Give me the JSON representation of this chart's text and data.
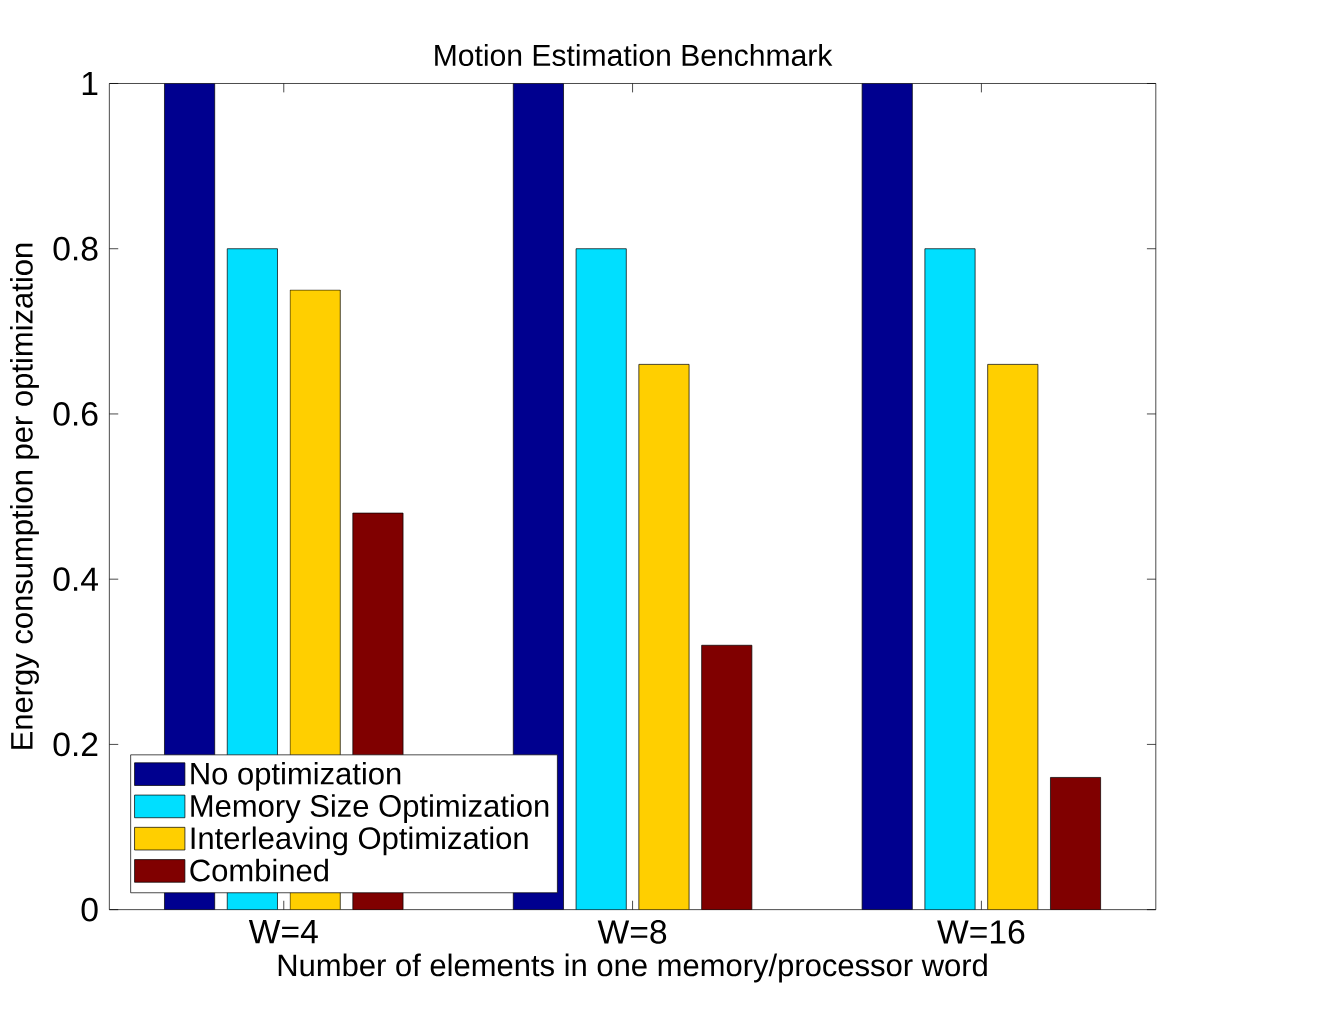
{
  "chart_data": {
    "type": "bar",
    "title": "Motion Estimation Benchmark",
    "xlabel": "Number of elements in one memory/processor word",
    "ylabel": "Energy consumption per optimization",
    "categories": [
      "W=4",
      "W=8",
      "W=16"
    ],
    "series": [
      {
        "name": "No optimization",
        "color": "#00008f",
        "values": [
          1,
          1,
          1
        ]
      },
      {
        "name": "Memory Size Optimization",
        "color": "#00dfff",
        "values": [
          0.8,
          0.8,
          0.8
        ]
      },
      {
        "name": "Interleaving Optimization",
        "color": "#ffcf00",
        "values": [
          0.75,
          0.66,
          0.66
        ]
      },
      {
        "name": "Combined",
        "color": "#800000",
        "values": [
          0.48,
          0.32,
          0.16
        ]
      }
    ],
    "ylim": [
      0,
      1
    ],
    "yticks": [
      0,
      0.2,
      0.4,
      0.6,
      0.8,
      1
    ],
    "legend": "bottom left"
  }
}
